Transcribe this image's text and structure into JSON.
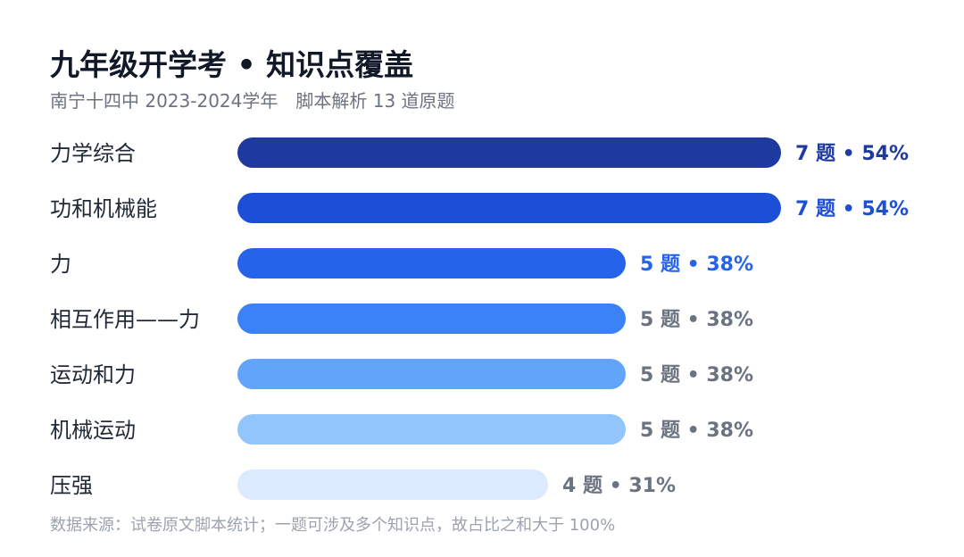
{
  "header": {
    "title": "九年级开学考 • 知识点覆盖",
    "subtitle": "南宁十四中 2023-2024学年　脚本解析 13 道原题"
  },
  "footnote": "数据来源：试卷原文脚本统计；一题可涉及多个知识点，故占比之和大于 100%",
  "chart_data": {
    "type": "bar",
    "orientation": "horizontal",
    "categories": [
      "力学综合",
      "功和机械能",
      "力",
      "相互作用——力",
      "运动和力",
      "机械运动",
      "压强"
    ],
    "values": [
      7,
      7,
      5,
      5,
      5,
      5,
      4
    ],
    "percents": [
      "54%",
      "54%",
      "38%",
      "38%",
      "38%",
      "38%",
      "31%"
    ],
    "value_labels": [
      "7 题 • 54%",
      "7 题 • 54%",
      "5 题 • 38%",
      "5 题 • 38%",
      "5 题 • 38%",
      "5 题 • 38%",
      "4 题 • 31%"
    ],
    "title": "九年级开学考 • 知识点覆盖",
    "xlabel": "",
    "ylabel": "",
    "xlim": [
      0,
      7
    ],
    "grid": false,
    "legend": "none",
    "colors": {
      "bars": [
        "#1e3a9e",
        "#1d4ed8",
        "#2563eb",
        "#3b82f6",
        "#60a5fa",
        "#93c5fd",
        "#dbeafe"
      ],
      "labels": [
        "#1e3a9e",
        "#1d4ed8",
        "#2563eb",
        "#6b7280",
        "#6b7280",
        "#6b7280",
        "#6b7280"
      ]
    }
  }
}
